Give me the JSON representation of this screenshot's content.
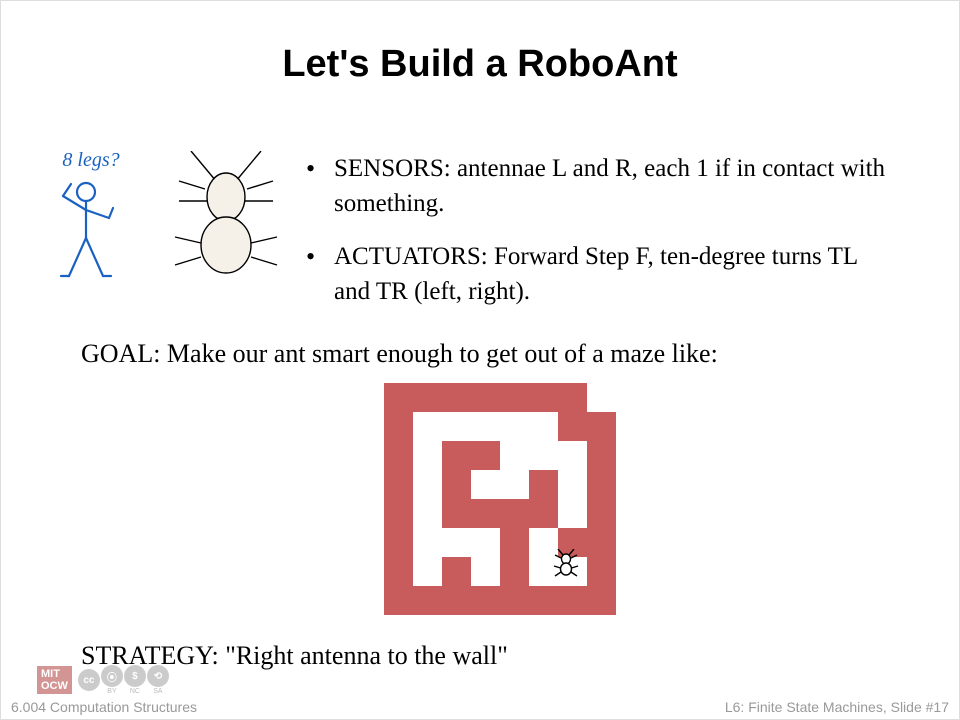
{
  "title": "Let's Build a RoboAnt",
  "stickman_caption": "8 legs?",
  "bullets": [
    "SENSORS: antennae L and R, each 1 if in contact with something.",
    "ACTUATORS: Forward Step F, ten-degree turns TL and TR (left, right)."
  ],
  "goal": "GOAL: Make our ant smart enough to get out of a maze like:",
  "strategy": "STRATEGY: \"Right antenna to the wall\"",
  "maze": {
    "cell_size": 29,
    "cols": 8,
    "rows": 8,
    "wall_color": "#c85c5c",
    "grid": [
      [
        1,
        1,
        1,
        1,
        1,
        1,
        1,
        0
      ],
      [
        1,
        0,
        0,
        0,
        0,
        0,
        1,
        1
      ],
      [
        1,
        0,
        1,
        1,
        0,
        0,
        0,
        1
      ],
      [
        1,
        0,
        1,
        0,
        0,
        1,
        0,
        1
      ],
      [
        1,
        0,
        1,
        1,
        1,
        1,
        0,
        1
      ],
      [
        1,
        0,
        0,
        0,
        1,
        0,
        1,
        1
      ],
      [
        1,
        0,
        1,
        0,
        1,
        0,
        0,
        1
      ],
      [
        1,
        1,
        1,
        1,
        1,
        1,
        1,
        1
      ]
    ],
    "bug_pos": {
      "col": 6,
      "row": 6
    }
  },
  "colors": {
    "stickman": "#1a62c2",
    "ant_fill": "#f5f0e8"
  },
  "footer": {
    "left": "6.004 Computation Structures",
    "right": "L6: Finite State Machines, Slide #17",
    "mit": "MIT\nOCW",
    "cc": [
      "BY",
      "NC",
      "SA"
    ]
  }
}
